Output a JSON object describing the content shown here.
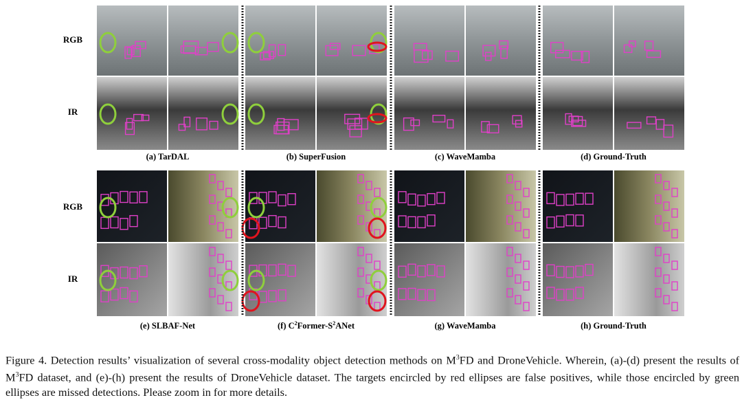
{
  "figure": {
    "row_labels": [
      "RGB",
      "IR",
      "RGB",
      "IR"
    ],
    "panels": [
      [
        "(a) TarDAL"
      ],
      [
        "(b) SuperFusion"
      ],
      [
        "(c) WaveMamba"
      ],
      [
        "(d) Ground-Truth"
      ],
      [
        "(e) SLBAF-Net"
      ],
      [
        "(f) C",
        "2",
        "Former-S",
        "2",
        "ANet"
      ],
      [
        "(g) WaveMamba"
      ],
      [
        "(h) Ground-Truth"
      ]
    ],
    "caption": [
      "Figure 4. Detection results’ visualization of several cross-modality object detection methods on M",
      "3",
      "FD and DroneVehicle. Wherein, (a)-(d) present the results of M",
      "3",
      "FD dataset, and (e)-(h) present the results of DroneVehicle dataset. The targets encircled by red ellipses are false positives, while those encircled by green ellipses are missed detections. Please zoom in for more details."
    ]
  }
}
